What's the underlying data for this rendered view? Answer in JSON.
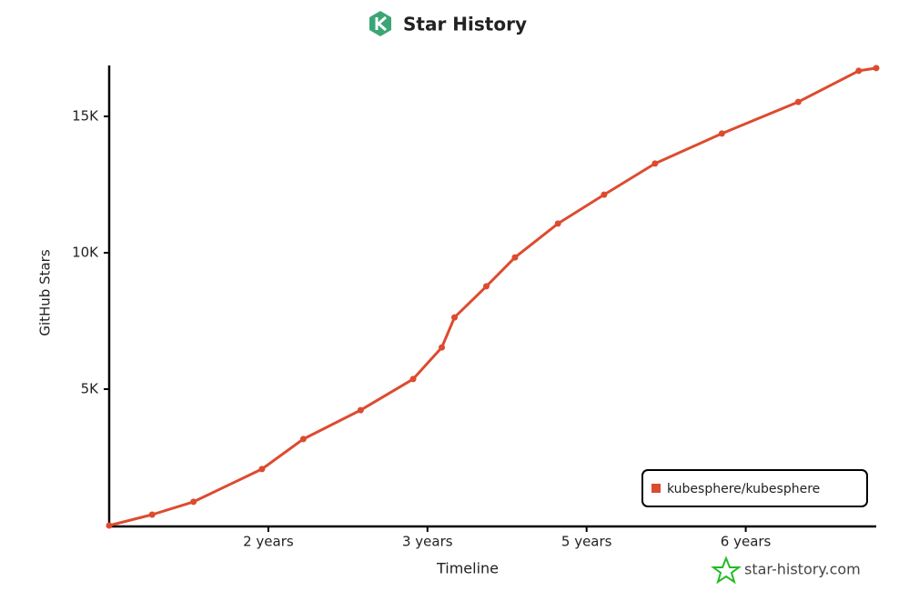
{
  "chart_data": {
    "type": "line",
    "title": "Star History",
    "xlabel": "Timeline",
    "ylabel": "GitHub Stars",
    "x": [
      0,
      0.27,
      0.53,
      0.96,
      1.22,
      1.58,
      1.91,
      2.09,
      2.17,
      2.37,
      2.55,
      2.82,
      3.11,
      3.43,
      3.85,
      4.33,
      4.71,
      4.82
    ],
    "series": [
      {
        "name": "kubesphere/kubesphere",
        "color": "#dd4b2f",
        "values": [
          0,
          400,
          870,
          2070,
          3170,
          4230,
          5370,
          6530,
          7630,
          8770,
          9830,
          11070,
          12130,
          13270,
          14370,
          15530,
          16670,
          16770
        ]
      }
    ],
    "xlim": [
      0,
      4.82
    ],
    "xticks": [
      {
        "value": 1,
        "label": "2 years"
      },
      {
        "value": 2,
        "label": "3 years"
      },
      {
        "value": 3,
        "label": "5 years"
      },
      {
        "value": 4,
        "label": "6 years"
      }
    ],
    "ylim": [
      0,
      17000
    ],
    "yticks": [
      {
        "value": 5000,
        "label": "5K"
      },
      {
        "value": 10000,
        "label": "10K"
      },
      {
        "value": 15000,
        "label": "15K"
      }
    ],
    "legend": "bottom-right",
    "watermark": "star-history.com"
  }
}
